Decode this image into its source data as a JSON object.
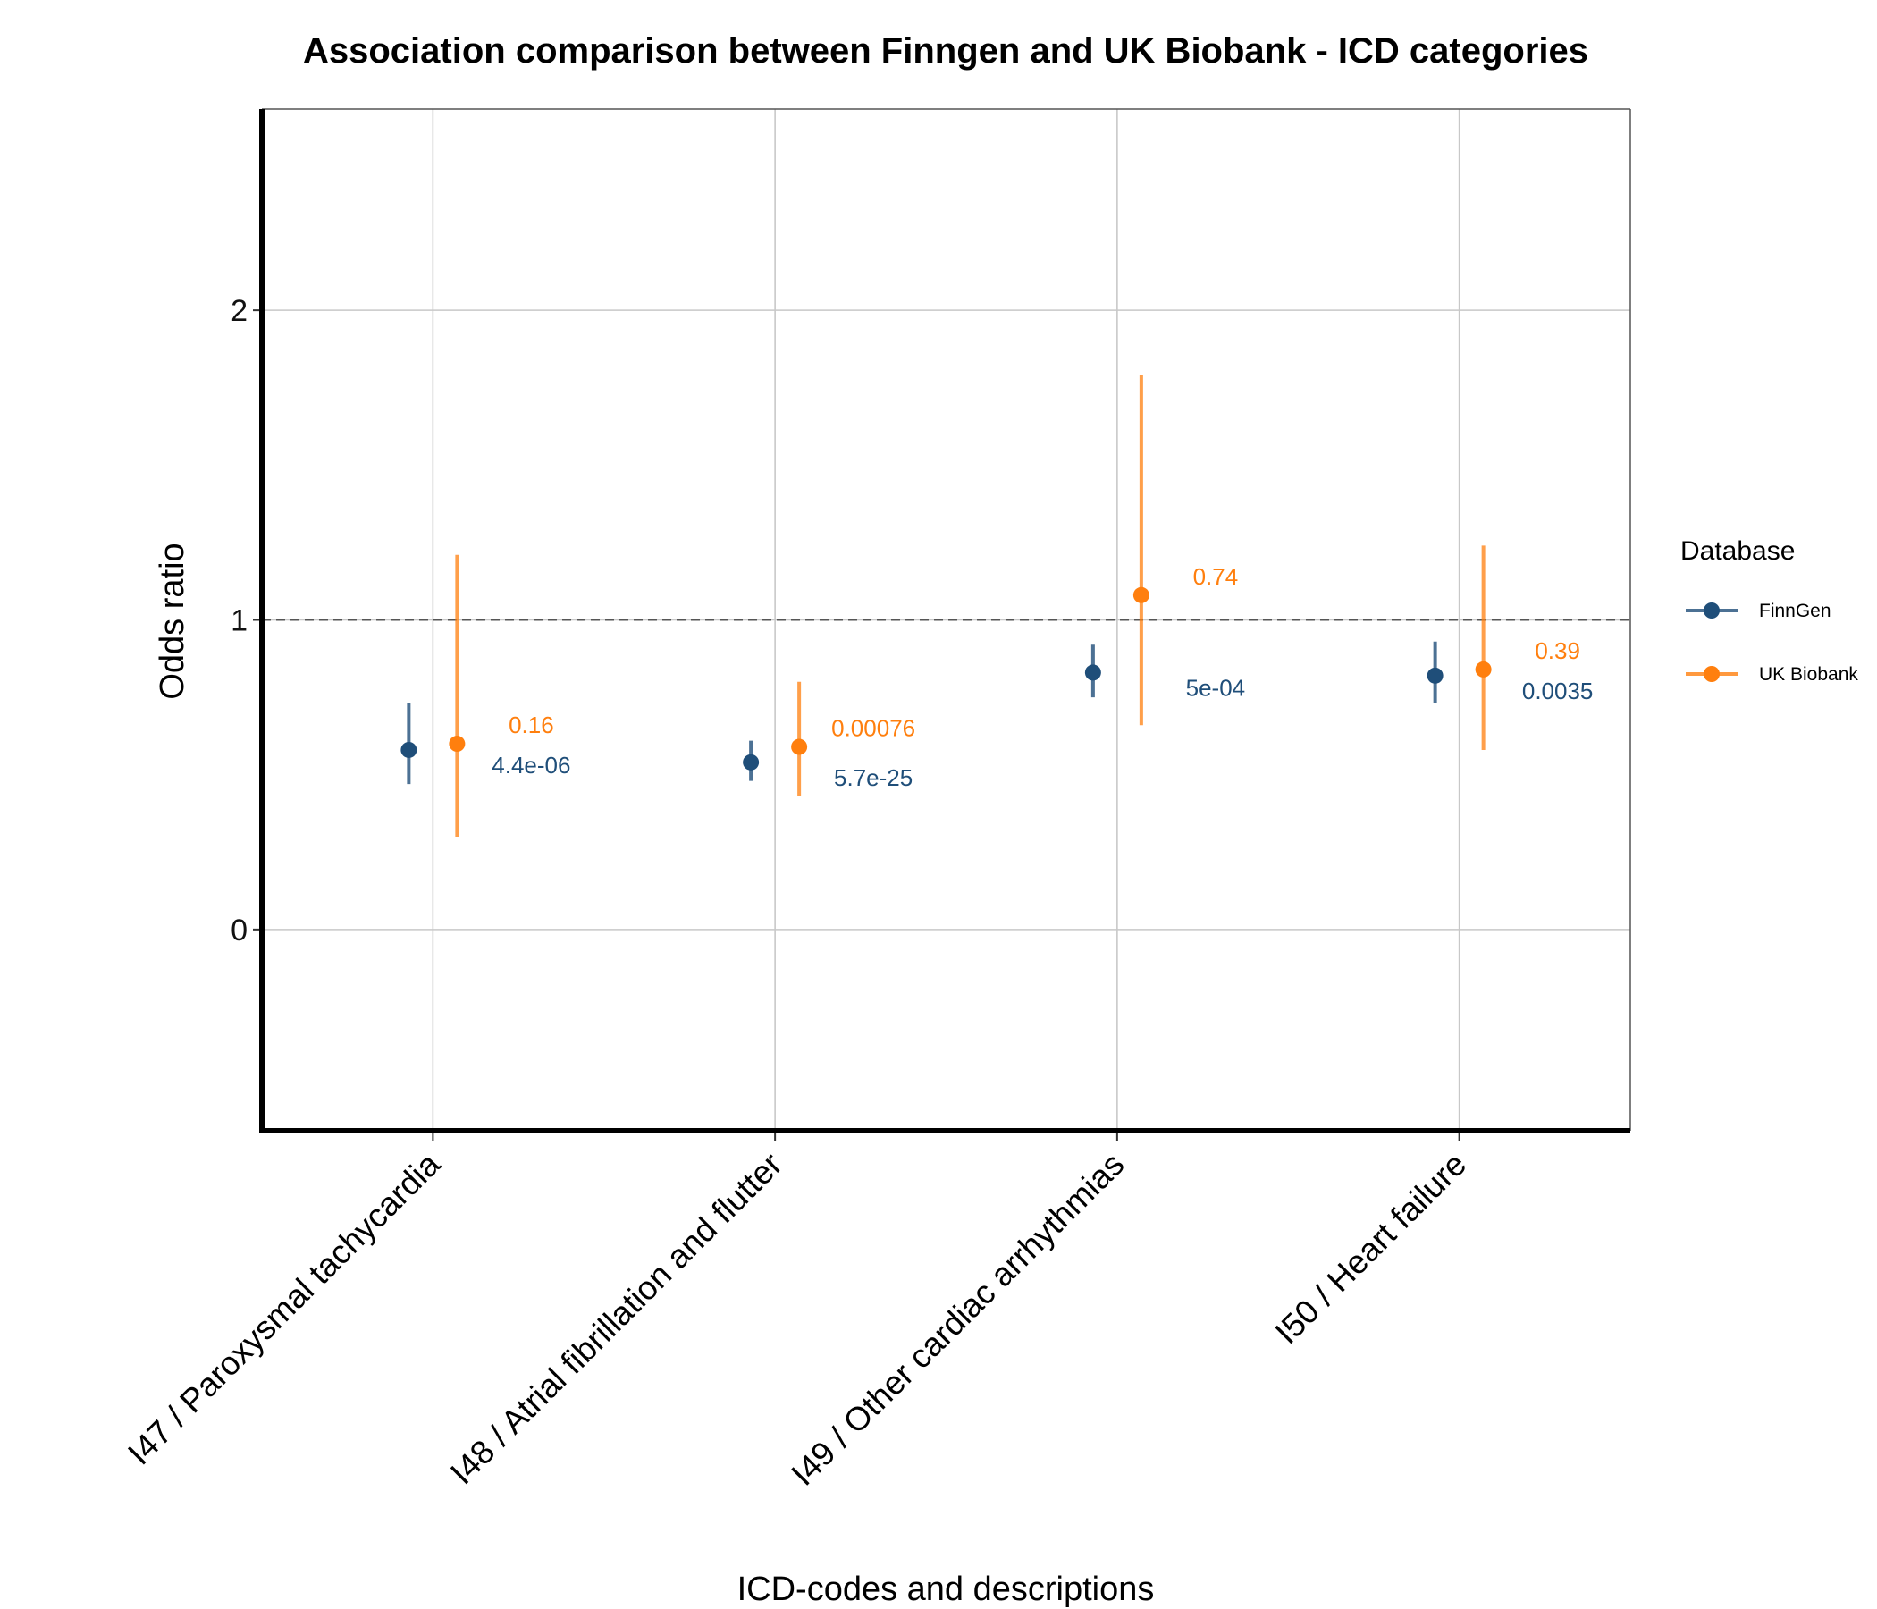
{
  "chart_data": {
    "type": "scatter",
    "title": "Association comparison between Finngen and UK Biobank - ICD categories",
    "xlabel": "ICD-codes and descriptions",
    "ylabel": "Odds ratio",
    "ylim": [
      -0.65,
      2.65
    ],
    "yticks": [
      "0",
      "1",
      "2"
    ],
    "reference_line": 1,
    "grid": true,
    "legend_position": "right",
    "legend_title": "Database",
    "categories": [
      "I47 / Paroxysmal tachycardia",
      "I48 / Atrial fibrillation and flutter",
      "I49 / Other cardiac arrhythmias",
      "I50 / Heart failure"
    ],
    "series": [
      {
        "name": "FinnGen",
        "color": "#1f4e79",
        "or": [
          0.58,
          0.54,
          0.83,
          0.82
        ],
        "lower": [
          0.47,
          0.48,
          0.75,
          0.73
        ],
        "upper": [
          0.73,
          0.61,
          0.92,
          0.93
        ],
        "p_labels": [
          "4.4e-06",
          "5.7e-25",
          "5e-04",
          "0.0035"
        ]
      },
      {
        "name": "UK Biobank",
        "color": "#ff7f0e",
        "or": [
          0.6,
          0.59,
          1.08,
          0.84
        ],
        "lower": [
          0.3,
          0.43,
          0.66,
          0.58
        ],
        "upper": [
          1.21,
          0.8,
          1.79,
          1.24
        ],
        "p_labels": [
          "0.16",
          "0.00076",
          "0.74",
          "0.39"
        ]
      }
    ]
  }
}
